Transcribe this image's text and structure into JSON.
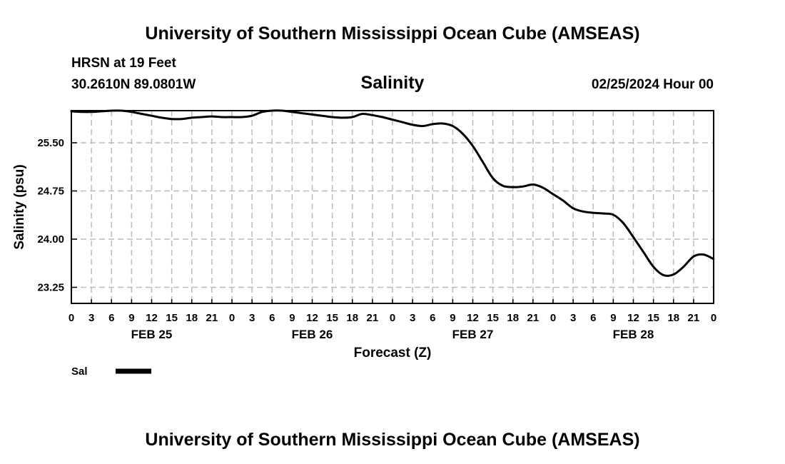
{
  "header": {
    "title": "University of Southern Mississippi Ocean Cube (AMSEAS)",
    "station": "HRSN at 19 Feet",
    "location": "30.2610N  89.0801W",
    "parameter": "Salinity",
    "datetime": "02/25/2024 Hour 00"
  },
  "footer": {
    "title": "University of Southern Mississippi Ocean Cube (AMSEAS)"
  },
  "legend": {
    "label": "Sal",
    "color": "#000000"
  },
  "chart_data": {
    "type": "line",
    "title": "Salinity",
    "xlabel": "Forecast (Z)",
    "ylabel": "Salinity (psu)",
    "ylim": [
      23.0,
      26.0
    ],
    "xlim": [
      0,
      96
    ],
    "yticks": [
      "25.50",
      "24.75",
      "24.00",
      "23.25"
    ],
    "ytick_values": [
      25.5,
      24.75,
      24.0,
      23.25
    ],
    "xtick_labels": [
      "0",
      "3",
      "6",
      "9",
      "12",
      "15",
      "18",
      "21",
      "0",
      "3",
      "6",
      "9",
      "12",
      "15",
      "18",
      "21",
      "0",
      "3",
      "6",
      "9",
      "12",
      "15",
      "18",
      "21",
      "0",
      "3",
      "6",
      "9",
      "12",
      "15",
      "18",
      "21",
      "0"
    ],
    "day_labels": [
      "FEB 25",
      "FEB 26",
      "FEB 27",
      "FEB 28"
    ],
    "grid": true,
    "series": [
      {
        "name": "Sal",
        "x": [
          0,
          1.5,
          3,
          4.5,
          6,
          7.5,
          9,
          10.5,
          12,
          13.5,
          15,
          16.5,
          18,
          19.5,
          21,
          22.5,
          24,
          25.5,
          27,
          28.5,
          30,
          31.5,
          33,
          34.5,
          36,
          37.5,
          39,
          40.5,
          42,
          43.5,
          45,
          46.5,
          48,
          49.5,
          51,
          52.5,
          54,
          55.5,
          57,
          58.5,
          60,
          61.5,
          63,
          64.5,
          66,
          67.5,
          69,
          70.5,
          72,
          73.5,
          75,
          76.5,
          78,
          79.5,
          81,
          82.5,
          84,
          85.5,
          87,
          88.5,
          90,
          91.5,
          93,
          94.5,
          96
        ],
        "values": [
          25.99,
          25.98,
          25.98,
          25.99,
          26.0,
          26.0,
          25.98,
          25.95,
          25.92,
          25.89,
          25.87,
          25.87,
          25.89,
          25.9,
          25.91,
          25.9,
          25.9,
          25.9,
          25.92,
          25.98,
          26.0,
          26.0,
          25.98,
          25.96,
          25.94,
          25.92,
          25.9,
          25.89,
          25.9,
          25.95,
          25.93,
          25.9,
          25.86,
          25.82,
          25.78,
          25.76,
          25.79,
          25.8,
          25.76,
          25.64,
          25.45,
          25.2,
          24.95,
          24.83,
          24.81,
          24.82,
          24.85,
          24.8,
          24.7,
          24.6,
          24.48,
          24.43,
          24.41,
          24.4,
          24.38,
          24.25,
          24.03,
          23.8,
          23.57,
          23.44,
          23.45,
          23.57,
          23.73,
          23.76,
          23.69
        ]
      }
    ]
  }
}
